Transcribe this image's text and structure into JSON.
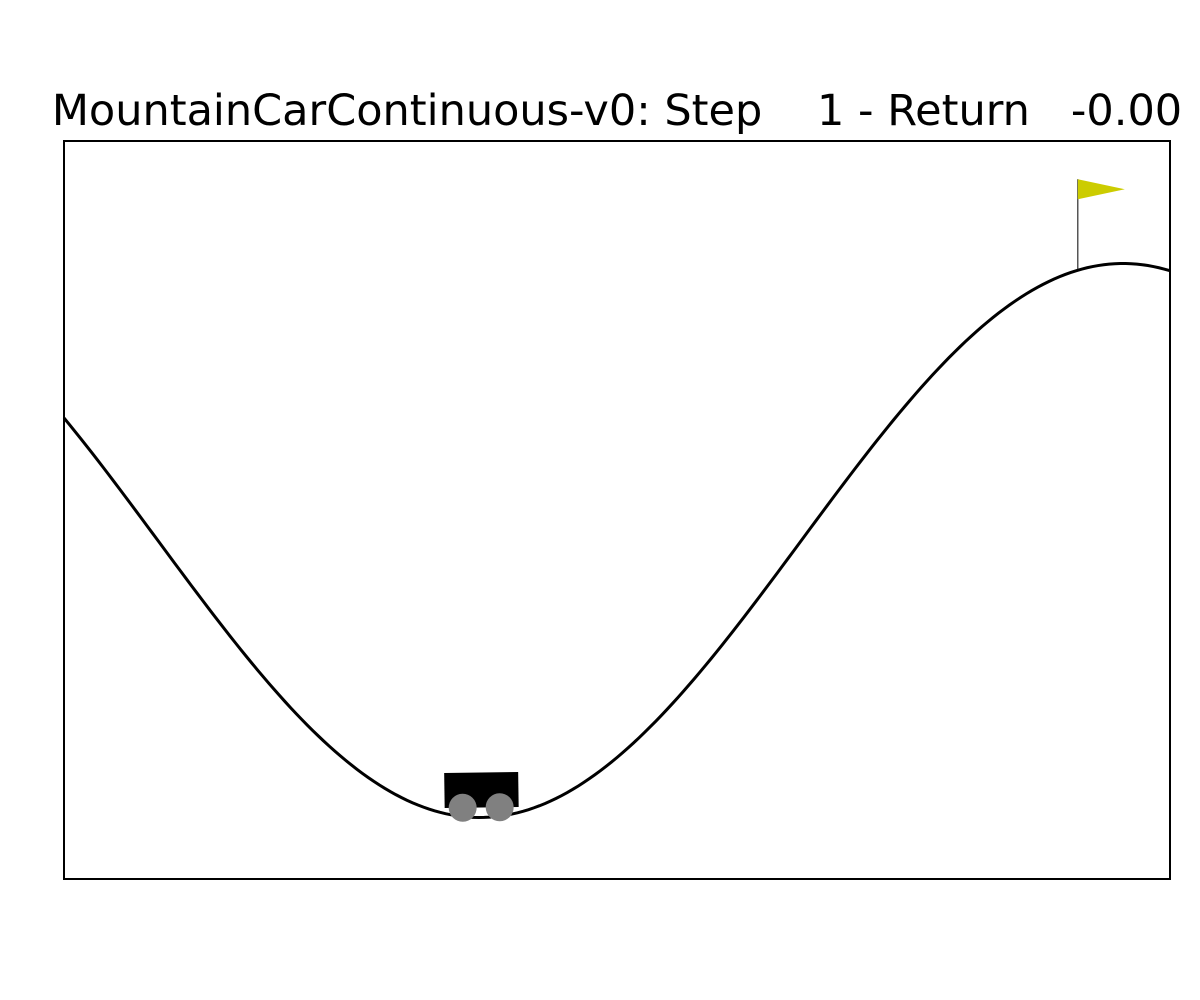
{
  "title": {
    "env_name": "MountainCarContinuous-v0",
    "step_label": "Step",
    "step_value": "1",
    "return_label": "Return",
    "return_value": "-0.00"
  },
  "env": {
    "position": -0.52,
    "goal_position": 0.45,
    "min_position": -1.2,
    "max_position": 0.6
  },
  "colors": {
    "track": "#000000",
    "car_body": "#000000",
    "wheel": "#808080",
    "flag": "#cccc00",
    "frame": "#000000",
    "background": "#ffffff"
  }
}
